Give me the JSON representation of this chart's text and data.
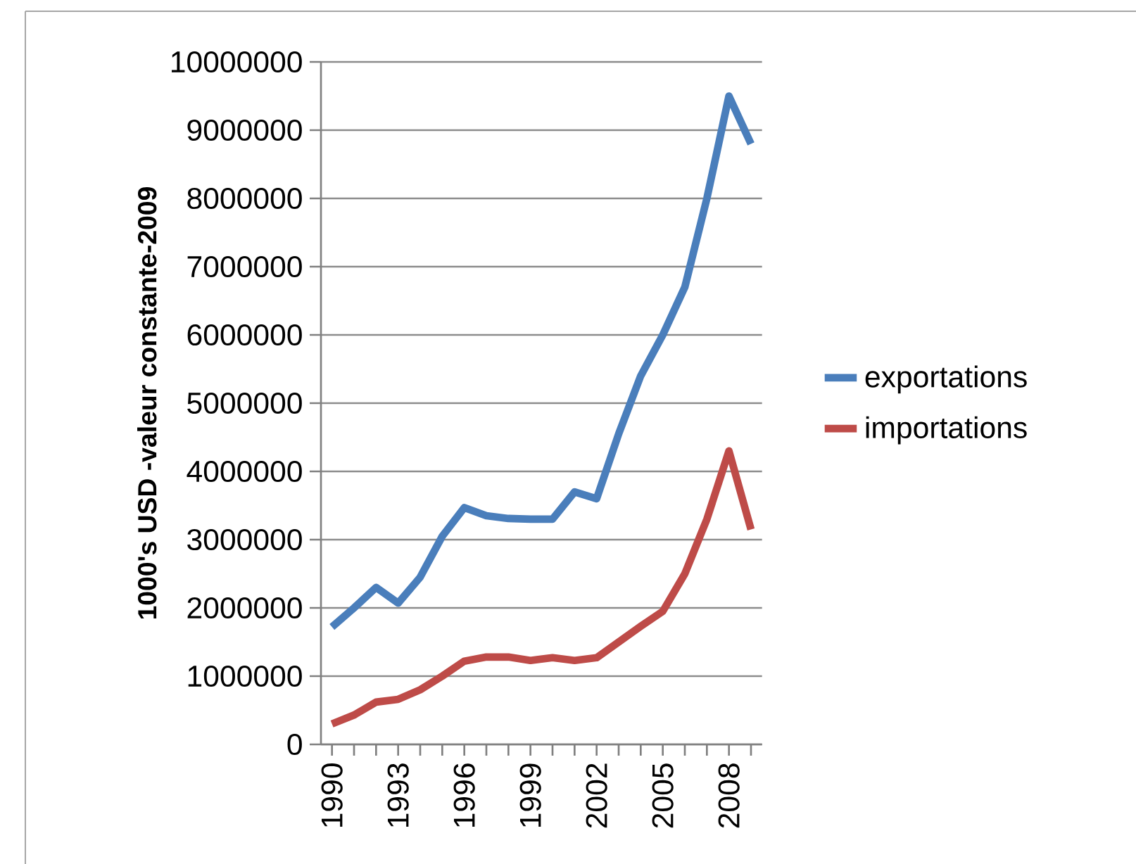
{
  "chart_data": {
    "type": "line",
    "ylabel": "1000's USD -valeur constante-2009",
    "categories": [
      "1990",
      null,
      null,
      "1993",
      null,
      null,
      "1996",
      null,
      null,
      "1999",
      null,
      null,
      "2002",
      null,
      null,
      "2005",
      null,
      null,
      "2008",
      null
    ],
    "series": [
      {
        "name": "exportations",
        "color": "#4a7ebb",
        "values": [
          1720000,
          2000000,
          2300000,
          2070000,
          2450000,
          3050000,
          3470000,
          3350000,
          3310000,
          3300000,
          3300000,
          3700000,
          3600000,
          4550000,
          5400000,
          6000000,
          6700000,
          8000000,
          9500000,
          8800000
        ]
      },
      {
        "name": "importations",
        "color": "#be4b48",
        "values": [
          300000,
          430000,
          620000,
          660000,
          800000,
          1000000,
          1220000,
          1280000,
          1280000,
          1230000,
          1270000,
          1230000,
          1270000,
          1500000,
          1730000,
          1950000,
          2500000,
          3300000,
          4300000,
          3150000
        ]
      }
    ],
    "ylim": [
      0,
      10000000
    ],
    "yticks": [
      0,
      1000000,
      2000000,
      3000000,
      4000000,
      5000000,
      6000000,
      7000000,
      8000000,
      9000000,
      10000000
    ],
    "grid": "y",
    "legend": "right",
    "marker": "none",
    "line_style": "solid"
  }
}
